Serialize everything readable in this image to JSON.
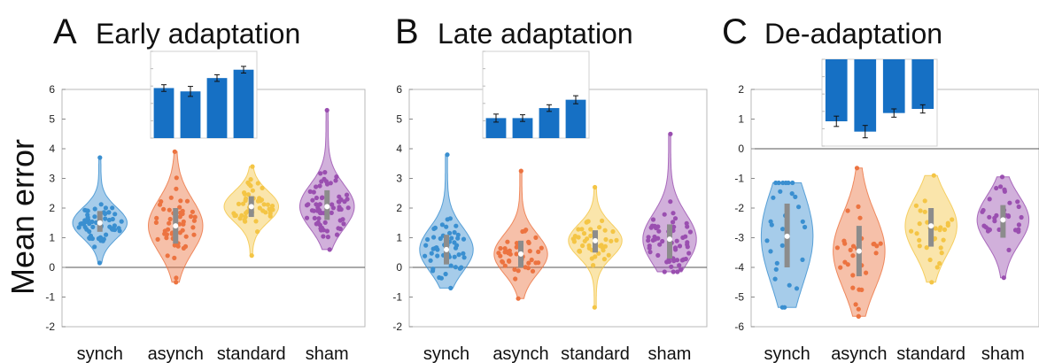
{
  "ylabel": "Mean error",
  "categories": [
    "synch",
    "asynch",
    "standard",
    "sham"
  ],
  "colors": [
    "#3a8fd0",
    "#ec7340",
    "#f4c545",
    "#9a4fb0"
  ],
  "inset_bar_color": "#1670c4",
  "chart_data": [
    {
      "type": "violin",
      "panel_letter": "A",
      "title": "Early adaptation",
      "categories": [
        "synch",
        "asynch",
        "standard",
        "sham"
      ],
      "ylim": [
        -2,
        6
      ],
      "yticks": [
        -2,
        -1,
        0,
        1,
        2,
        3,
        4,
        5,
        6
      ],
      "grid": false,
      "min": [
        0.15,
        -0.5,
        0.4,
        0.6
      ],
      "max": [
        3.7,
        3.9,
        3.4,
        5.3
      ],
      "q1": [
        1.2,
        0.8,
        1.7,
        1.6
      ],
      "q3": [
        1.9,
        2.0,
        2.4,
        2.6
      ],
      "median": [
        1.5,
        1.4,
        2.05,
        2.05
      ],
      "points_per_group": [
        60,
        50,
        48,
        65
      ],
      "inset": {
        "type": "bar",
        "values": [
          1.5,
          1.4,
          1.8,
          2.05
        ],
        "errors": [
          0.1,
          0.15,
          0.1,
          0.1
        ],
        "ylim": [
          0,
          2.6
        ],
        "ticks_labeled": false
      }
    },
    {
      "type": "violin",
      "panel_letter": "B",
      "title": "Late adaptation",
      "categories": [
        "synch",
        "asynch",
        "standard",
        "sham"
      ],
      "ylim": [
        -2,
        6
      ],
      "yticks": [
        -2,
        -1,
        0,
        1,
        2,
        3,
        4,
        5,
        6
      ],
      "grid": false,
      "min": [
        -0.7,
        -1.05,
        -1.35,
        -0.15
      ],
      "max": [
        3.8,
        3.25,
        2.7,
        4.5
      ],
      "q1": [
        0.1,
        0.0,
        0.5,
        0.3
      ],
      "q3": [
        1.1,
        0.9,
        1.25,
        1.45
      ],
      "median": [
        0.6,
        0.45,
        0.9,
        0.95
      ],
      "points_per_group": [
        50,
        45,
        45,
        60
      ],
      "inset": {
        "type": "bar",
        "values": [
          0.6,
          0.6,
          0.9,
          1.15
        ],
        "errors": [
          0.12,
          0.1,
          0.1,
          0.12
        ],
        "ylim": [
          0,
          2.6
        ],
        "ticks_labeled": false
      }
    },
    {
      "type": "violin",
      "panel_letter": "C",
      "title": "De-adaptation",
      "categories": [
        "synch",
        "asynch",
        "standard",
        "sham"
      ],
      "ylim": [
        -6,
        2
      ],
      "yticks": [
        -6,
        -5,
        -4,
        -3,
        -2,
        -1,
        0,
        1,
        2
      ],
      "grid": false,
      "min": [
        -5.35,
        -5.65,
        -4.5,
        -4.35
      ],
      "max": [
        -1.15,
        -0.65,
        -0.9,
        -0.95
      ],
      "q1": [
        -4.0,
        -4.3,
        -3.3,
        -3.0
      ],
      "q3": [
        -1.85,
        -2.6,
        -2.0,
        -1.9
      ],
      "median": [
        -2.95,
        -3.45,
        -2.6,
        -2.4
      ],
      "points_per_group": [
        28,
        30,
        30,
        32
      ],
      "inset": {
        "type": "bar",
        "values": [
          -3.0,
          -3.5,
          -2.6,
          -2.4
        ],
        "errors": [
          0.25,
          0.3,
          0.2,
          0.2
        ],
        "ylim": [
          -4.2,
          0
        ],
        "ticks_labeled": false
      }
    }
  ]
}
